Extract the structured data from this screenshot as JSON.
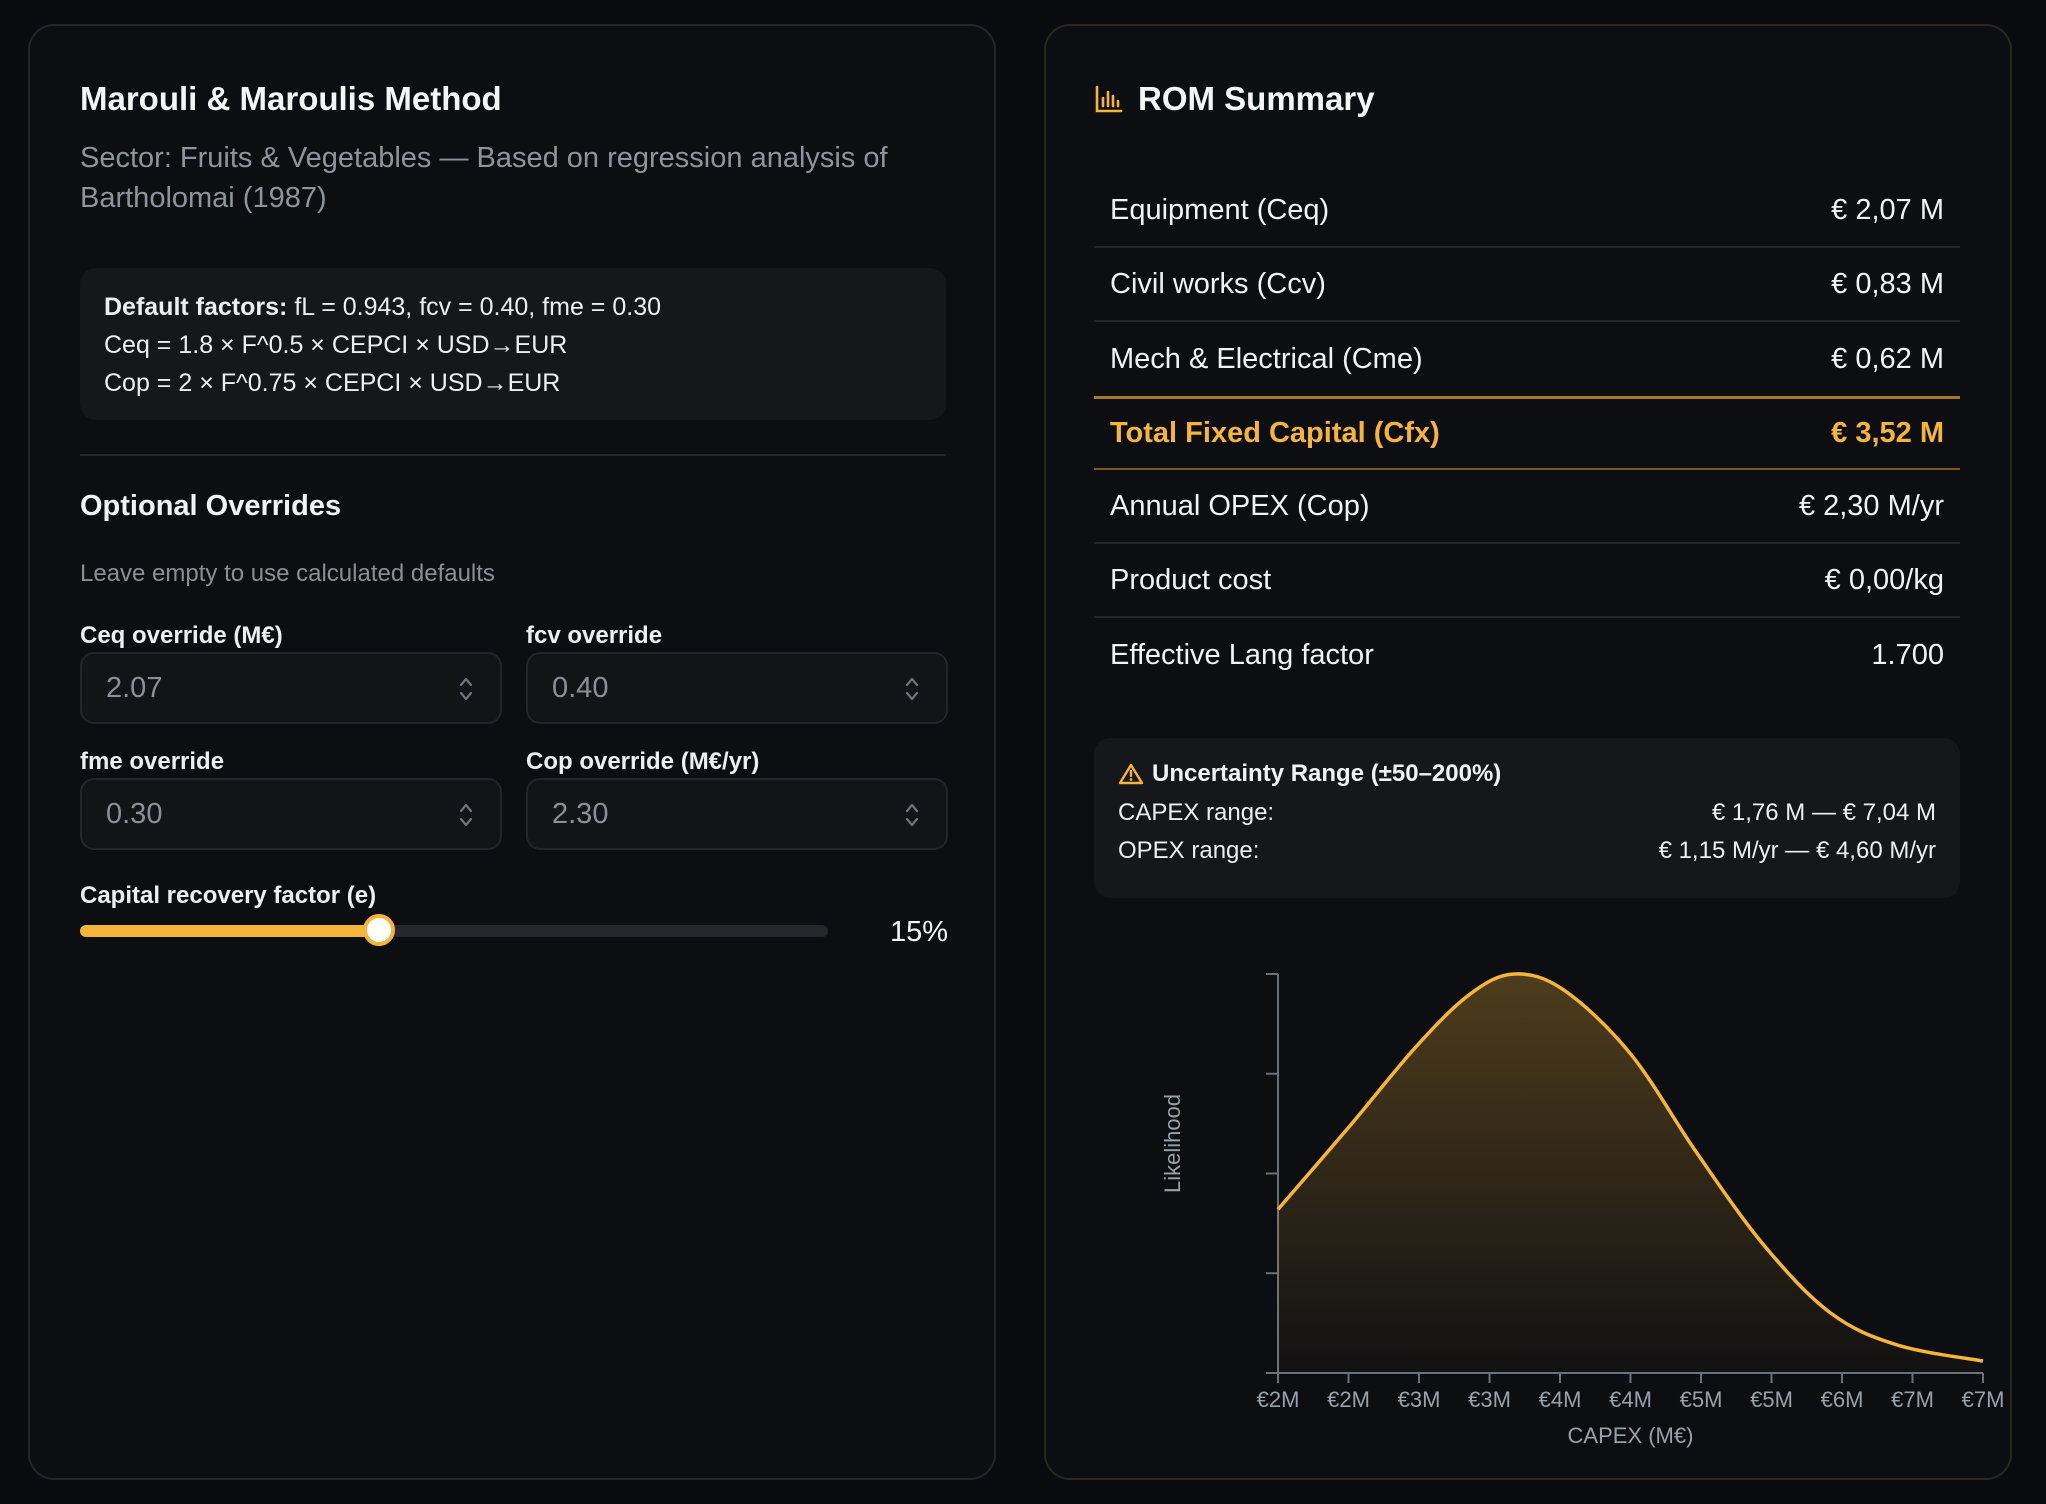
{
  "method": {
    "title": "Marouli & Maroulis Method",
    "subtitle": "Sector: Fruits & Vegetables — Based on regression analysis of Bartholomai (1987)"
  },
  "factors": {
    "label": "Default factors:",
    "values": "fL = 0.943, fcv = 0.40, fme = 0.30",
    "ceq_formula": "Ceq = 1.8 × F^0.5 × CEPCI × USD→EUR",
    "cop_formula": "Cop = 2 × F^0.75 × CEPCI × USD→EUR"
  },
  "overrides": {
    "title": "Optional Overrides",
    "hint": "Leave empty to use calculated defaults",
    "ceq": {
      "label": "Ceq override (M€)",
      "placeholder": "2.07"
    },
    "fcv": {
      "label": "fcv override",
      "placeholder": "0.40"
    },
    "fme": {
      "label": "fme override",
      "placeholder": "0.30"
    },
    "cop": {
      "label": "Cop override (M€/yr)",
      "placeholder": "2.30"
    }
  },
  "slider": {
    "label": "Capital recovery factor (e)",
    "value_text": "15%",
    "fraction": 0.4,
    "accent": "#f5b43a"
  },
  "summary": {
    "icon": "bar-chart-icon",
    "title": "ROM Summary",
    "rows": [
      {
        "label": "Equipment (Ceq)",
        "value": "€ 2,07 M"
      },
      {
        "label": "Civil works (Ccv)",
        "value": "€ 0,83 M"
      },
      {
        "label": "Mech & Electrical (Cme)",
        "value": "€ 0,62 M"
      },
      {
        "label": "Total Fixed Capital (Cfx)",
        "value": "€ 3,52 M"
      },
      {
        "label": "Annual OPEX (Cop)",
        "value": "€ 2,30 M/yr"
      },
      {
        "label": "Product cost",
        "value": "€ 0,00/kg"
      },
      {
        "label": "Effective Lang factor",
        "value": "1.700"
      }
    ]
  },
  "uncertainty": {
    "icon": "warning-icon",
    "title": "Uncertainty Range (±50–200%)",
    "capex_label": "CAPEX range:",
    "capex_value": "€ 1,76 M — € 7,04 M",
    "opex_label": "OPEX range:",
    "opex_value": "€ 1,15 M/yr — € 4,60 M/yr"
  },
  "chart_data": {
    "type": "area",
    "xlabel": "CAPEX (M€)",
    "ylabel": "Likelihood",
    "x_ticks": [
      "€2M",
      "€2M",
      "€3M",
      "€3M",
      "€4M",
      "€4M",
      "€5M",
      "€5M",
      "€6M",
      "€7M",
      "€7M"
    ],
    "xlim": [
      1.76,
      7.04
    ],
    "ylim": [
      0,
      1
    ],
    "x": [
      1.76,
      2.3,
      2.8,
      3.2,
      3.53,
      3.9,
      4.4,
      4.9,
      5.4,
      5.9,
      6.4,
      7.04
    ],
    "y": [
      0.41,
      0.62,
      0.82,
      0.95,
      1.0,
      0.96,
      0.8,
      0.55,
      0.32,
      0.15,
      0.07,
      0.03
    ],
    "grid": false,
    "color": "#f5b43a"
  }
}
